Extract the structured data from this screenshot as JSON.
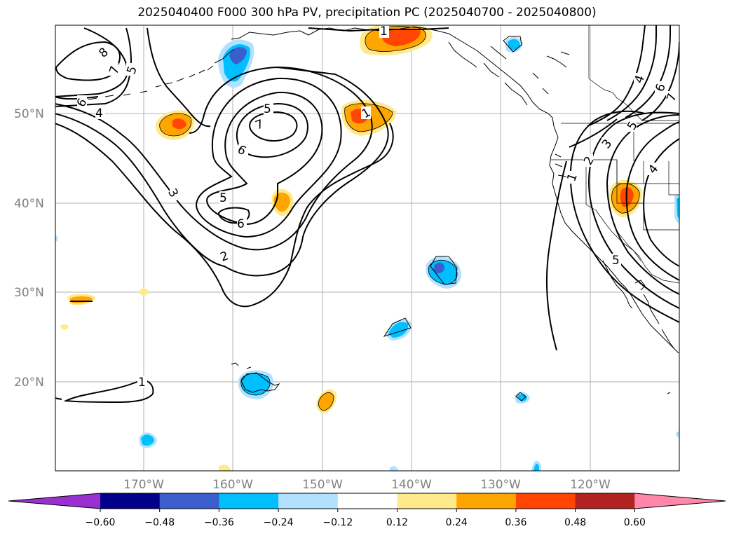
{
  "title": "2025040400 F000 300 hPa PV, precipitation PC (2025040700 - 2025040800)",
  "lat_ticks": [
    "50°N",
    "40°N",
    "30°N",
    "20°N"
  ],
  "lon_ticks": [
    "170°W",
    "160°W",
    "150°W",
    "140°W",
    "130°W",
    "120°W"
  ],
  "colorbar": {
    "ticks": [
      "−0.60",
      "−0.48",
      "−0.36",
      "−0.24",
      "−0.12",
      "0.12",
      "0.24",
      "0.36",
      "0.48",
      "0.60"
    ],
    "colors": [
      "#9b30d0",
      "#00008b",
      "#3a5fcd",
      "#00bfff",
      "#b0e2ff",
      "#ffffff",
      "#fee98b",
      "#ffa500",
      "#ff4500",
      "#b22222",
      "#ff88aa"
    ],
    "extend": "both"
  },
  "pv_contour_labels": [
    {
      "id": "l8",
      "text": "8"
    },
    {
      "id": "l7a",
      "text": "7"
    },
    {
      "id": "l5a",
      "text": "5"
    },
    {
      "id": "l6a",
      "text": "6"
    },
    {
      "id": "l4a",
      "text": "4"
    },
    {
      "id": "l5b",
      "text": "5"
    },
    {
      "id": "l7b",
      "text": "7"
    },
    {
      "id": "l6b",
      "text": "6"
    },
    {
      "id": "l3a",
      "text": "3"
    },
    {
      "id": "l5c",
      "text": "5"
    },
    {
      "id": "l6c",
      "text": "6"
    },
    {
      "id": "l2a",
      "text": "2"
    },
    {
      "id": "l1a",
      "text": "1"
    },
    {
      "id": "l1b",
      "text": "1"
    },
    {
      "id": "l1c",
      "text": "1"
    },
    {
      "id": "l1d",
      "text": "1"
    },
    {
      "id": "l2b",
      "text": "2"
    },
    {
      "id": "l3b",
      "text": "3"
    },
    {
      "id": "l4b",
      "text": "4"
    },
    {
      "id": "l5d",
      "text": "5"
    },
    {
      "id": "l4c",
      "text": "4"
    },
    {
      "id": "l6d",
      "text": "6"
    },
    {
      "id": "l7c",
      "text": "7"
    },
    {
      "id": "l5e",
      "text": "5"
    }
  ]
}
